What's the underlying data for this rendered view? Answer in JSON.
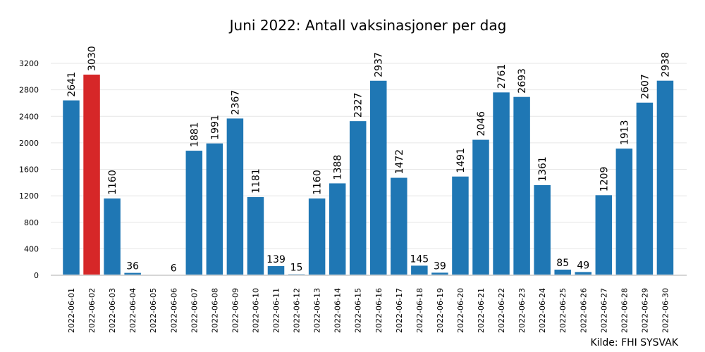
{
  "chart_data": {
    "type": "bar",
    "title": "Juni 2022: Antall vaksinasjoner per dag",
    "source": "Kilde: FHI SYSVAK",
    "xlabel": "",
    "ylabel": "",
    "ylim": [
      0,
      3200
    ],
    "yticks": [
      0,
      400,
      800,
      1200,
      1600,
      2000,
      2400,
      2800,
      3200
    ],
    "grid": true,
    "colors": {
      "default": "#1f77b4",
      "highlight": "#d62728"
    },
    "highlight_index": 1,
    "categories": [
      "2022-06-01",
      "2022-06-02",
      "2022-06-03",
      "2022-06-04",
      "2022-06-05",
      "2022-06-06",
      "2022-06-07",
      "2022-06-08",
      "2022-06-09",
      "2022-06-10",
      "2022-06-11",
      "2022-06-12",
      "2022-06-13",
      "2022-06-14",
      "2022-06-15",
      "2022-06-16",
      "2022-06-17",
      "2022-06-18",
      "2022-06-19",
      "2022-06-20",
      "2022-06-21",
      "2022-06-22",
      "2022-06-23",
      "2022-06-24",
      "2022-06-25",
      "2022-06-26",
      "2022-06-27",
      "2022-06-28",
      "2022-06-29",
      "2022-06-30"
    ],
    "values": [
      2641,
      3030,
      1160,
      36,
      null,
      6,
      1881,
      1991,
      2367,
      1181,
      139,
      15,
      1160,
      1388,
      2327,
      2937,
      1472,
      145,
      39,
      1491,
      2046,
      2761,
      2693,
      1361,
      85,
      49,
      1209,
      1913,
      2607,
      2938
    ]
  }
}
